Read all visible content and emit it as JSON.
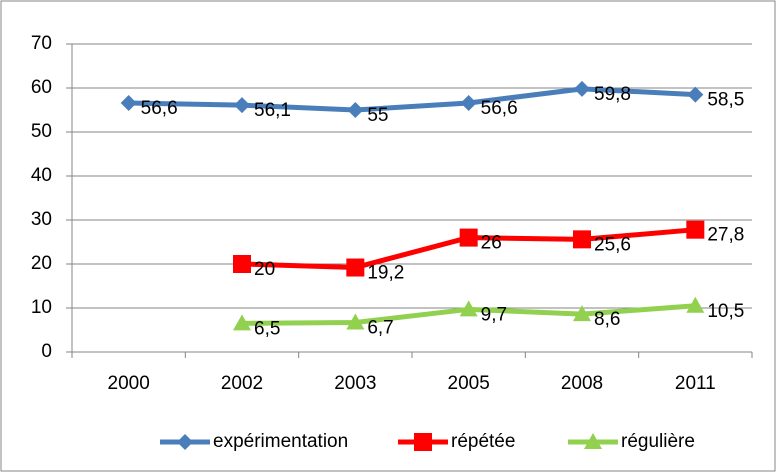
{
  "chart_data": {
    "type": "line",
    "categories": [
      "2000",
      "2002",
      "2003",
      "2005",
      "2008",
      "2011"
    ],
    "series": [
      {
        "name": "expérimentation",
        "color": "#4a7ebb",
        "marker": "diamond",
        "values": [
          56.6,
          56.1,
          55,
          56.6,
          59.8,
          58.5
        ],
        "value_labels": [
          "56,6",
          "56,1",
          "55",
          "56,6",
          "59,8",
          "58,5"
        ]
      },
      {
        "name": "répétée",
        "color": "#ff0000",
        "marker": "square",
        "values": [
          null,
          20,
          19.2,
          26,
          25.6,
          27.8
        ],
        "value_labels": [
          null,
          "20",
          "19,2",
          "26",
          "25,6",
          "27,8"
        ]
      },
      {
        "name": "régulière",
        "color": "#92d050",
        "marker": "triangle",
        "values": [
          null,
          6.5,
          6.7,
          9.7,
          8.6,
          10.5
        ],
        "value_labels": [
          null,
          "6,5",
          "6,7",
          "9,7",
          "8,6",
          "10,5"
        ]
      }
    ],
    "ylim": [
      0,
      70
    ],
    "yticks": [
      0,
      10,
      20,
      30,
      40,
      50,
      60,
      70
    ],
    "grid": true,
    "legend": "bottom"
  }
}
